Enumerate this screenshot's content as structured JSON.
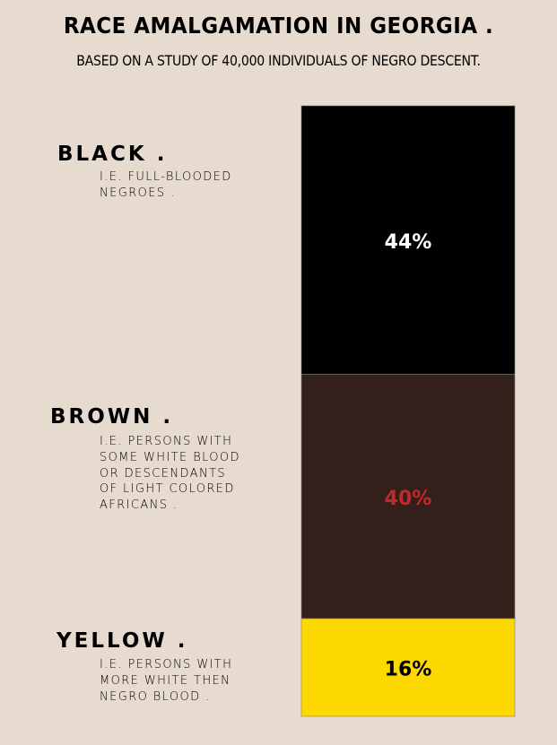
{
  "title": "RACE AMALGAMATION IN GEORGIA .",
  "subtitle": "BASED ON A STUDY OF 40,000 INDIVIDUALS OF NEGRO DESCENT.",
  "chart_data": {
    "type": "bar",
    "stacked": true,
    "orientation": "vertical",
    "title": "RACE AMALGAMATION IN GEORGIA .",
    "subtitle": "BASED ON A STUDY OF 40,000 INDIVIDUALS OF NEGRO DESCENT.",
    "categories": [
      "BLACK .",
      "BROWN .",
      "YELLOW ."
    ],
    "values": [
      44,
      40,
      16
    ],
    "value_labels": [
      "44%",
      "40%",
      "16%"
    ],
    "descriptions": [
      "I.E. FULL-BLOODED\nNEGROES .",
      "I.E. PERSONS WITH\nSOME WHITE BLOOD\nOR DESCENDANTS\nOF LIGHT COLORED\nAFRICANS .",
      "I.E. PERSONS WITH\nMORE WHITE THEN\nNEGRO BLOOD ."
    ],
    "colors": [
      "#000000",
      "#33201a",
      "#fdd700"
    ],
    "label_colors": [
      "#ffffff",
      "#c0282c",
      "#000000"
    ],
    "unit": "%"
  }
}
